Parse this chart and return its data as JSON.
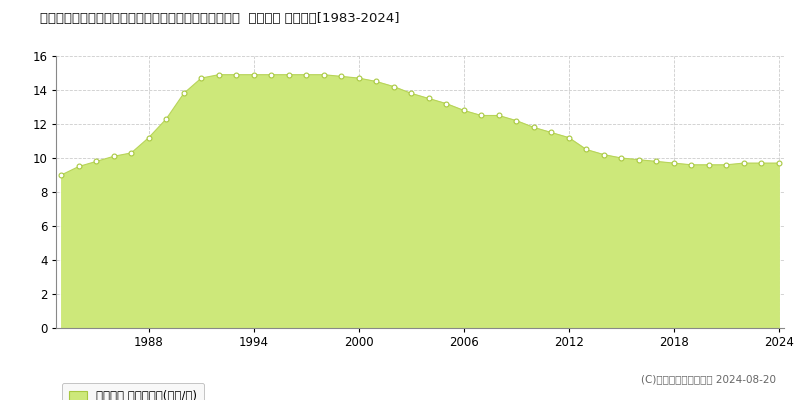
{
  "title": "栃木県河内郡上三川町大字上三川字冨士山３３５６番４  地価公示 地価推移[1983-2024]",
  "years": [
    1983,
    1984,
    1985,
    1986,
    1987,
    1988,
    1989,
    1990,
    1991,
    1992,
    1993,
    1994,
    1995,
    1996,
    1997,
    1998,
    1999,
    2000,
    2001,
    2002,
    2003,
    2004,
    2005,
    2006,
    2007,
    2008,
    2009,
    2010,
    2011,
    2012,
    2013,
    2014,
    2015,
    2016,
    2017,
    2018,
    2019,
    2020,
    2021,
    2022,
    2023,
    2024
  ],
  "values": [
    9.0,
    9.5,
    9.8,
    10.1,
    10.3,
    11.2,
    12.3,
    13.8,
    14.7,
    14.9,
    14.9,
    14.9,
    14.9,
    14.9,
    14.9,
    14.9,
    14.8,
    14.7,
    14.5,
    14.2,
    13.8,
    13.5,
    13.2,
    12.8,
    12.5,
    12.5,
    12.2,
    11.8,
    11.5,
    11.2,
    10.5,
    10.2,
    10.0,
    9.9,
    9.8,
    9.7,
    9.6,
    9.6,
    9.6,
    9.7,
    9.7,
    9.7
  ],
  "fill_color": "#cde87a",
  "line_color": "#b8d45a",
  "marker_facecolor": "#ffffff",
  "marker_edgecolor": "#a8c840",
  "bg_color": "#ffffff",
  "plot_bg_color": "#ffffff",
  "grid_color": "#cccccc",
  "ylim": [
    0,
    16
  ],
  "yticks": [
    0,
    2,
    4,
    6,
    8,
    10,
    12,
    14,
    16
  ],
  "xticks": [
    1988,
    1994,
    2000,
    2006,
    2012,
    2018,
    2024
  ],
  "legend_label": "地価公示 平均坪単価(万円/坪)",
  "copyright": "(C)土地価格ドットコム 2024-08-20",
  "title_fontsize": 9.5,
  "axis_fontsize": 8.5,
  "legend_fontsize": 8.5,
  "copyright_fontsize": 7.5
}
